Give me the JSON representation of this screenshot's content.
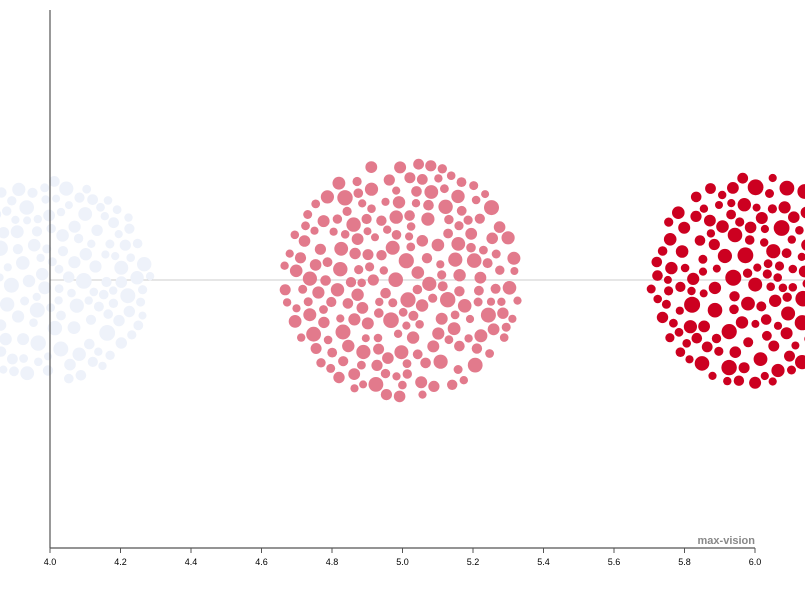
{
  "chart_data": {
    "type": "scatter",
    "subtype": "bubble-cluster",
    "xlabel": "max-vision",
    "xlim": [
      4.0,
      6.0
    ],
    "x_ticks": [
      "4.0",
      "4.2",
      "4.4",
      "4.6",
      "4.8",
      "5.0",
      "5.2",
      "5.4",
      "5.6",
      "5.8",
      "6.0"
    ],
    "y_baseline_visible": true,
    "grid": false,
    "legend": "none",
    "series": [
      {
        "x": 4.0,
        "color": "#eef2fa",
        "cluster_radius": 0.3
      },
      {
        "x": 5.0,
        "color": "#e27a8c",
        "cluster_radius": 0.35
      },
      {
        "x": 6.0,
        "color": "#cc0020",
        "cluster_radius": 0.31
      }
    ]
  }
}
